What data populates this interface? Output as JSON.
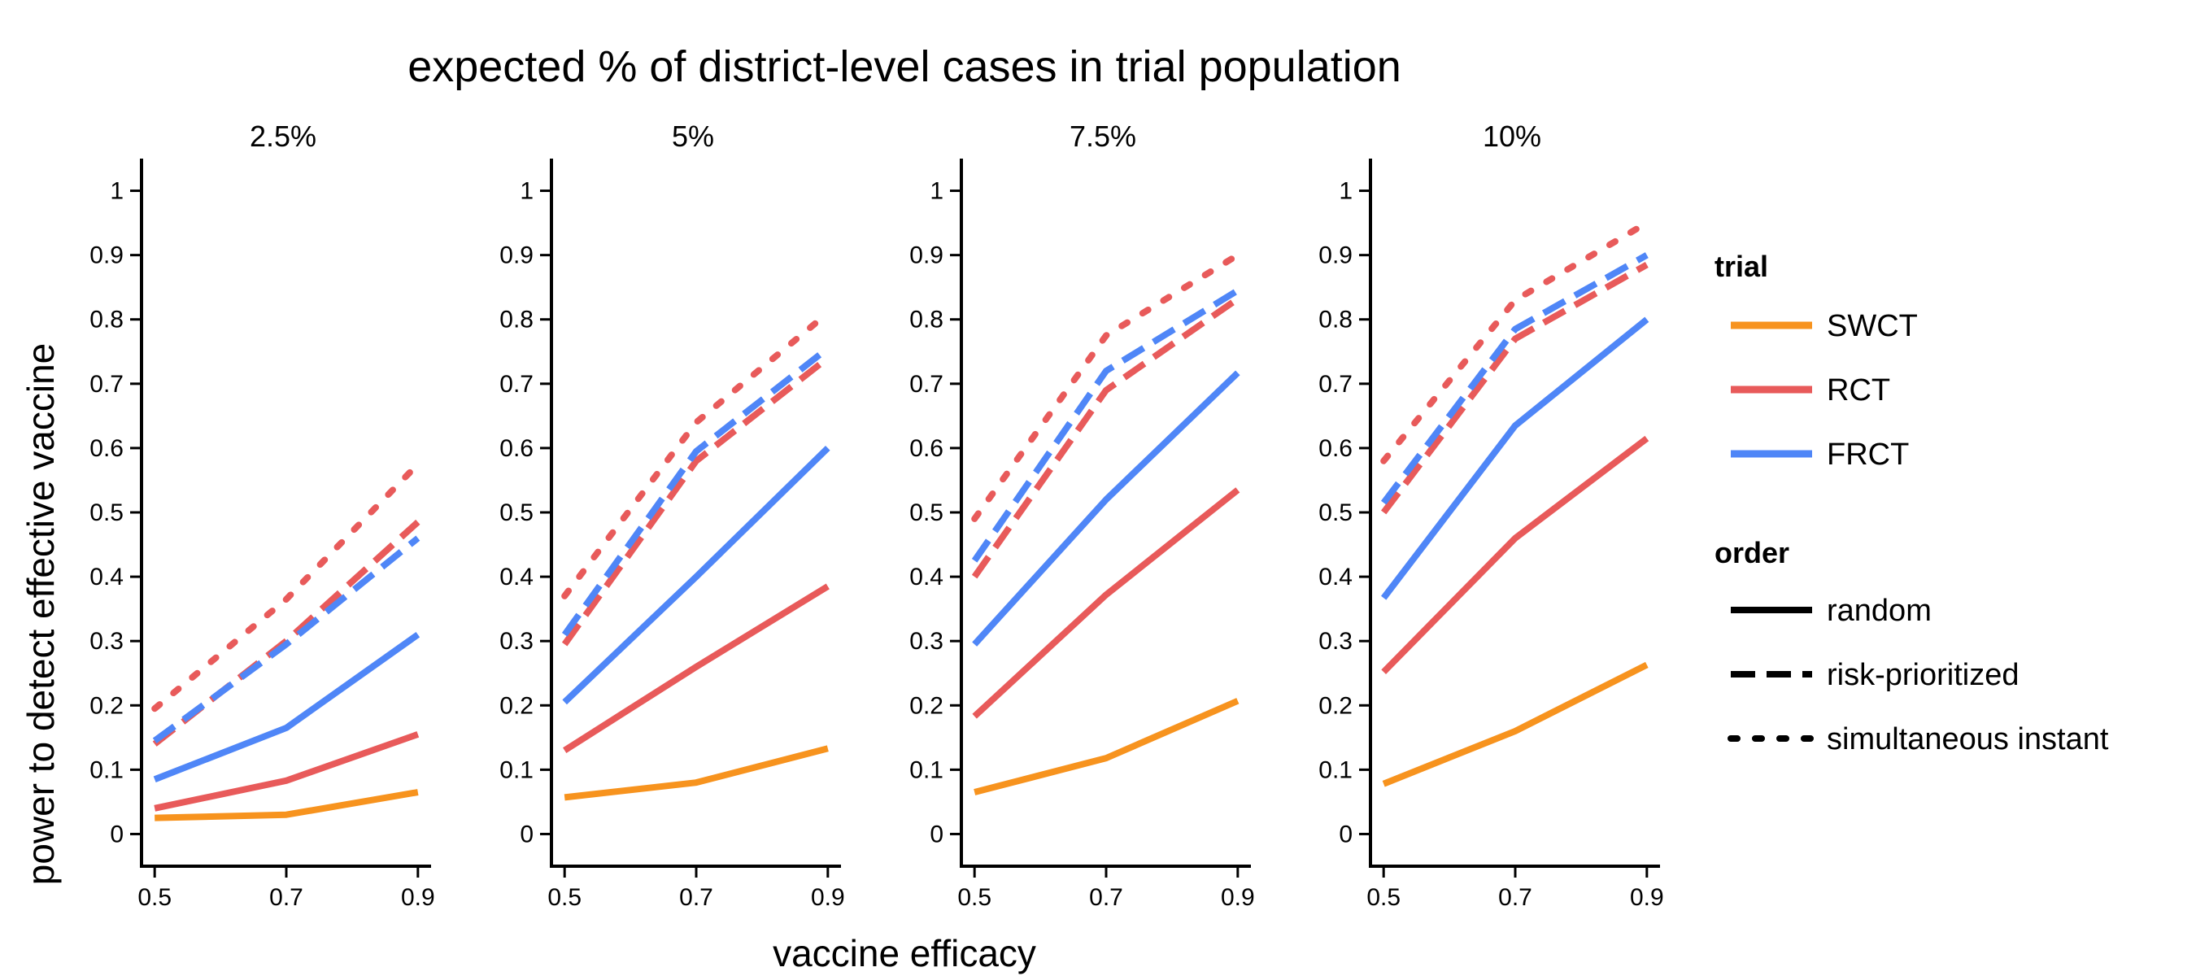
{
  "chart_data": {
    "type": "line",
    "title": "expected % of district-level cases in trial population",
    "xlabel": "vaccine efficacy",
    "ylabel": "power to detect effective vaccine",
    "x": [
      0.5,
      0.7,
      0.9
    ],
    "x_ticks": [
      "0.5",
      "0.7",
      "0.9"
    ],
    "y_ticks": [
      "0",
      "0.1",
      "0.2",
      "0.3",
      "0.4",
      "0.5",
      "0.6",
      "0.7",
      "0.8",
      "0.9",
      "1"
    ],
    "xlim": [
      0.48,
      0.92
    ],
    "ylim": [
      -0.05,
      1.05
    ],
    "grid": false,
    "legend_position": "right",
    "colors": {
      "SWCT": "#F7931E",
      "RCT": "#E85A5A",
      "FRCT": "#4F86F7"
    },
    "legend": {
      "trial_title": "trial",
      "trial": [
        "SWCT",
        "RCT",
        "FRCT"
      ],
      "order_title": "order",
      "order": [
        "random",
        "risk-prioritized",
        "simultaneous instant"
      ]
    },
    "panels": [
      {
        "label": "2.5%",
        "series": [
          {
            "trial": "SWCT",
            "order": "random",
            "values": [
              0.025,
              0.03,
              0.065
            ]
          },
          {
            "trial": "RCT",
            "order": "random",
            "values": [
              0.04,
              0.083,
              0.155
            ]
          },
          {
            "trial": "FRCT",
            "order": "random",
            "values": [
              0.085,
              0.165,
              0.31
            ]
          },
          {
            "trial": "RCT",
            "order": "risk-prioritized",
            "values": [
              0.14,
              0.3,
              0.485
            ]
          },
          {
            "trial": "FRCT",
            "order": "risk-prioritized",
            "values": [
              0.145,
              0.295,
              0.46
            ]
          },
          {
            "trial": "RCT",
            "order": "simultaneous instant",
            "values": [
              0.195,
              0.365,
              0.575
            ]
          }
        ]
      },
      {
        "label": "5%",
        "series": [
          {
            "trial": "SWCT",
            "order": "random",
            "values": [
              0.057,
              0.08,
              0.133
            ]
          },
          {
            "trial": "RCT",
            "order": "random",
            "values": [
              0.13,
              0.26,
              0.385
            ]
          },
          {
            "trial": "FRCT",
            "order": "random",
            "values": [
              0.205,
              0.4,
              0.6
            ]
          },
          {
            "trial": "RCT",
            "order": "risk-prioritized",
            "values": [
              0.295,
              0.58,
              0.74
            ]
          },
          {
            "trial": "FRCT",
            "order": "risk-prioritized",
            "values": [
              0.31,
              0.595,
              0.755
            ]
          },
          {
            "trial": "RCT",
            "order": "simultaneous instant",
            "values": [
              0.37,
              0.64,
              0.81
            ]
          }
        ]
      },
      {
        "label": "7.5%",
        "series": [
          {
            "trial": "SWCT",
            "order": "random",
            "values": [
              0.065,
              0.118,
              0.207
            ]
          },
          {
            "trial": "RCT",
            "order": "random",
            "values": [
              0.183,
              0.372,
              0.535
            ]
          },
          {
            "trial": "FRCT",
            "order": "random",
            "values": [
              0.295,
              0.52,
              0.717
            ]
          },
          {
            "trial": "RCT",
            "order": "risk-prioritized",
            "values": [
              0.4,
              0.69,
              0.832
            ]
          },
          {
            "trial": "FRCT",
            "order": "risk-prioritized",
            "values": [
              0.425,
              0.72,
              0.845
            ]
          },
          {
            "trial": "RCT",
            "order": "simultaneous instant",
            "values": [
              0.49,
              0.775,
              0.9
            ]
          }
        ]
      },
      {
        "label": "10%",
        "series": [
          {
            "trial": "SWCT",
            "order": "random",
            "values": [
              0.078,
              0.16,
              0.263
            ]
          },
          {
            "trial": "RCT",
            "order": "random",
            "values": [
              0.252,
              0.46,
              0.615
            ]
          },
          {
            "trial": "FRCT",
            "order": "random",
            "values": [
              0.367,
              0.635,
              0.8
            ]
          },
          {
            "trial": "RCT",
            "order": "risk-prioritized",
            "values": [
              0.5,
              0.77,
              0.885
            ]
          },
          {
            "trial": "FRCT",
            "order": "risk-prioritized",
            "values": [
              0.515,
              0.785,
              0.9
            ]
          },
          {
            "trial": "RCT",
            "order": "simultaneous instant",
            "values": [
              0.58,
              0.83,
              0.95
            ]
          }
        ]
      }
    ]
  }
}
